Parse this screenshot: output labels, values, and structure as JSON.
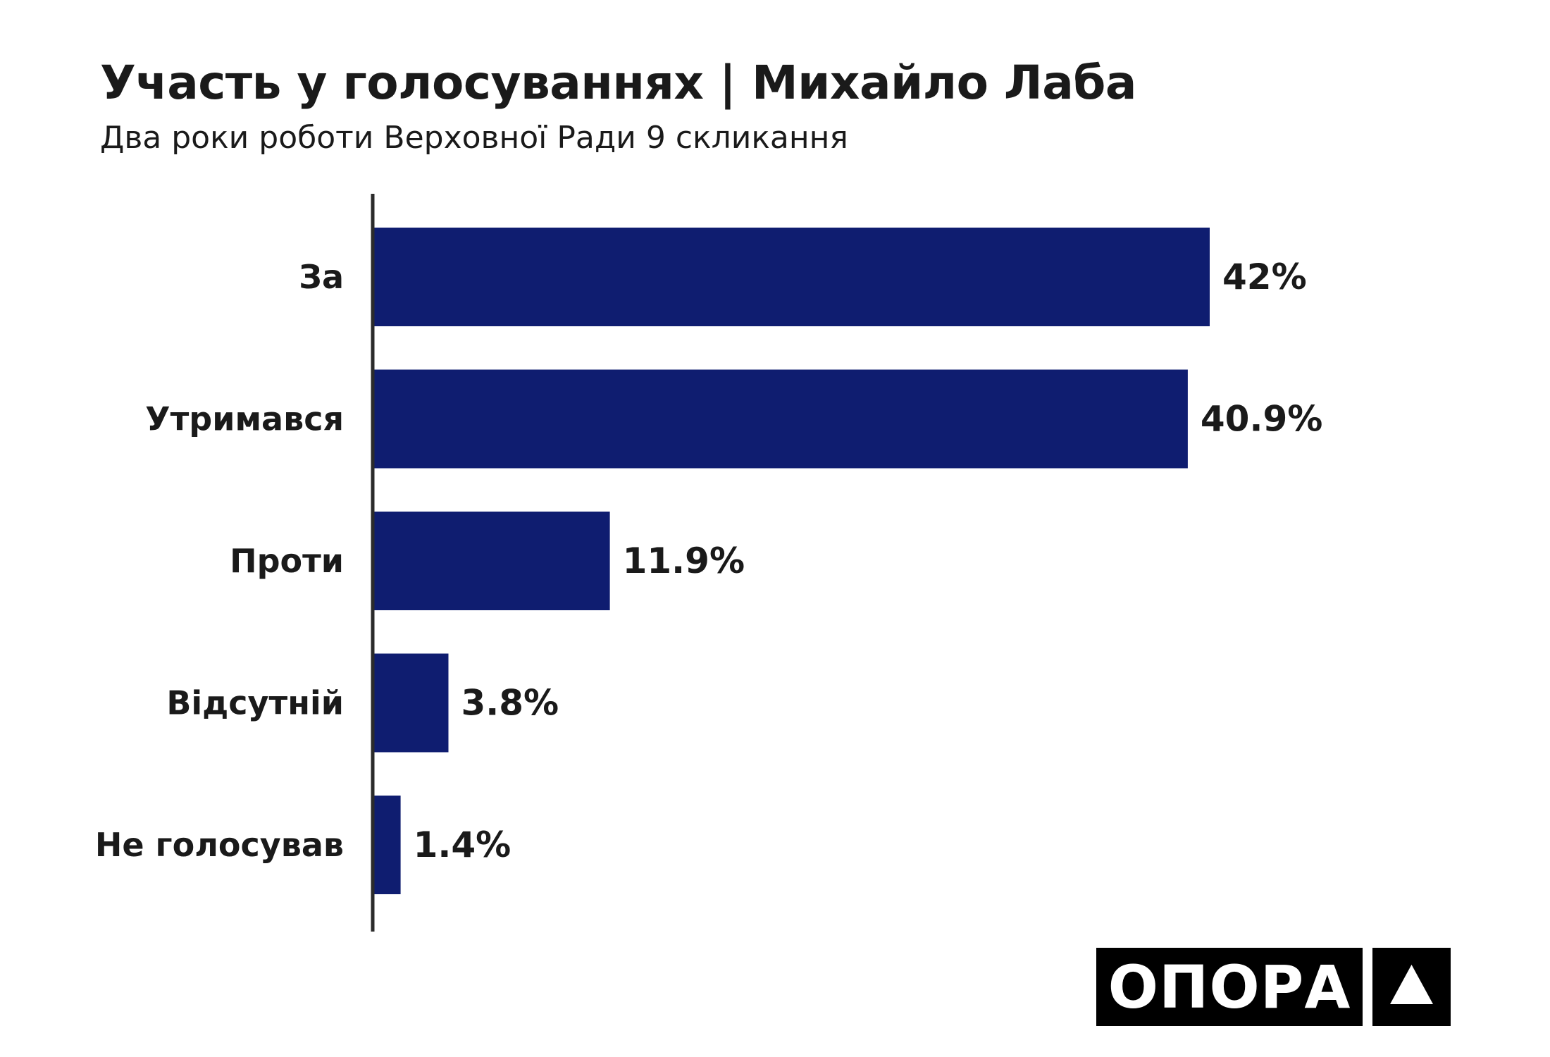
{
  "chart_data": {
    "type": "bar",
    "orientation": "horizontal",
    "title": "Участь у голосуваннях | Михайло Лаба",
    "subtitle": "Два роки роботи Верховної Ради 9 скликання",
    "categories": [
      "За",
      "Утримався",
      "Проти",
      "Відсутній",
      "Не голосував"
    ],
    "values": [
      42,
      40.9,
      11.9,
      3.8,
      1.4
    ],
    "value_labels": [
      "42%",
      "40.9%",
      "11.9%",
      "3.8%",
      "1.4%"
    ],
    "xlim": [
      0,
      42
    ],
    "grid": false,
    "bar_color": "#0f1d70"
  },
  "logo": {
    "text": "ОПОРА",
    "mark": "triangle-icon"
  }
}
